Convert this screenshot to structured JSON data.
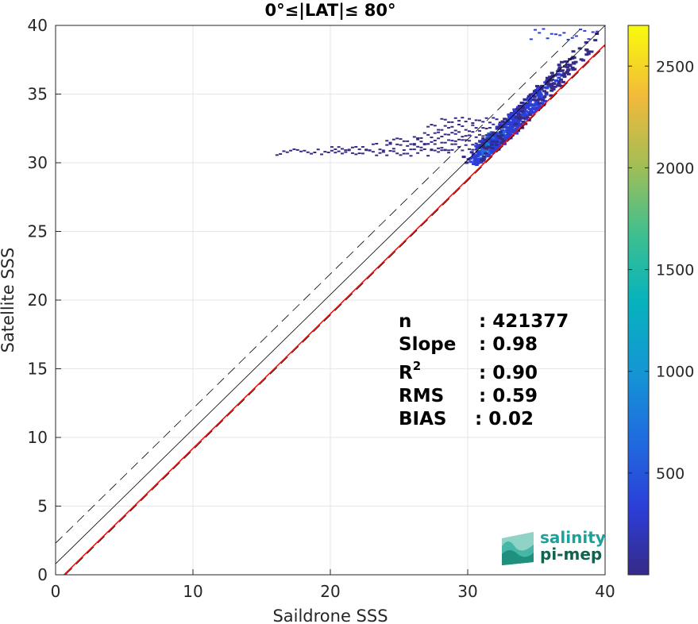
{
  "chart_data": {
    "type": "heatmap",
    "title": "0°≤|LAT|≤ 80°",
    "xlabel": "Saildrone SSS",
    "ylabel": "Satellite SSS",
    "xlim": [
      0,
      40
    ],
    "ylim": [
      0,
      40
    ],
    "x_ticks": [
      "0",
      "10",
      "20",
      "30",
      "40"
    ],
    "y_ticks": [
      "0",
      "5",
      "10",
      "15",
      "20",
      "25",
      "30",
      "35",
      "40"
    ],
    "grid": true,
    "colorbar": {
      "range": [
        0,
        2700
      ],
      "ticks": [
        "500",
        "1000",
        "1500",
        "2000",
        "2500"
      ],
      "tick_values": [
        500,
        1000,
        1500,
        2000,
        2500
      ],
      "colormap": "parula"
    },
    "lines": [
      {
        "kind": "regression",
        "color": "#ff0000",
        "points": [
          [
            0,
            -0.6
          ],
          [
            40,
            38.6
          ]
        ]
      },
      {
        "kind": "one-to-one",
        "color": "#000000",
        "points": [
          [
            0,
            0.8
          ],
          [
            40,
            40.0
          ]
        ]
      },
      {
        "kind": "upper-bound-dashed",
        "color": "#000000",
        "points": [
          [
            0,
            2.3
          ],
          [
            40,
            41.5
          ]
        ]
      },
      {
        "kind": "lower-bound-dashed",
        "color": "#000000",
        "points": [
          [
            0,
            -0.7
          ],
          [
            40,
            38.5
          ]
        ]
      }
    ],
    "density_core": [
      {
        "x": 31.5,
        "y": 31.5,
        "count": 1400
      },
      {
        "x": 32.5,
        "y": 32.2,
        "count": 1100
      },
      {
        "x": 33.5,
        "y": 33.4,
        "count": 900
      },
      {
        "x": 35.0,
        "y": 34.8,
        "count": 800
      },
      {
        "x": 36.5,
        "y": 36.3,
        "count": 500
      },
      {
        "x": 38.0,
        "y": 38.0,
        "count": 200
      }
    ],
    "stats": [
      {
        "label": "n",
        "value": ": 421377"
      },
      {
        "label": "Slope",
        "value": ": 0.98"
      },
      {
        "label": "R",
        "sup": "2",
        "value": ": 0.90"
      },
      {
        "label": "RMS",
        "value": ": 0.59"
      },
      {
        "label": "BIAS",
        "value": ": 0.02"
      }
    ]
  },
  "logo": {
    "line1": "salinity",
    "line2": "pi-mep",
    "color1": "#1aa39b",
    "color2": "#14614f"
  }
}
